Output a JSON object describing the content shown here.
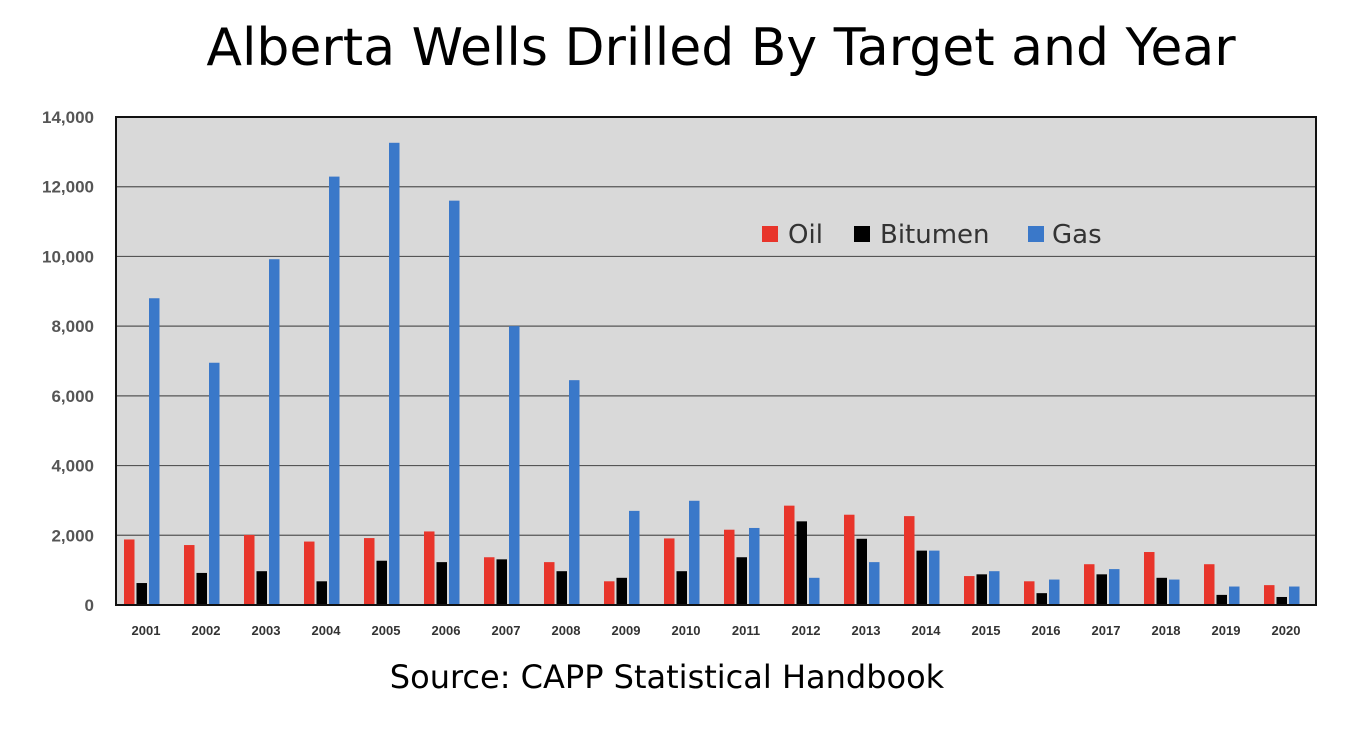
{
  "chart_data": {
    "type": "bar",
    "title": "Alberta Wells Drilled By Target and Year",
    "source": "Source: CAPP Statistical Handbook",
    "categories": [
      "2001",
      "2002",
      "2003",
      "2004",
      "2005",
      "2006",
      "2007",
      "2008",
      "2009",
      "2010",
      "2011",
      "2012",
      "2013",
      "2014",
      "2015",
      "2016",
      "2017",
      "2018",
      "2019",
      "2020"
    ],
    "series": [
      {
        "name": "Oil",
        "color": "#e8352b",
        "values": [
          1880,
          1720,
          2010,
          1820,
          1920,
          2110,
          1370,
          1230,
          680,
          1910,
          2160,
          2850,
          2590,
          2550,
          830,
          680,
          1170,
          1520,
          1170,
          570
        ]
      },
      {
        "name": "Bitumen",
        "color": "#000000",
        "values": [
          630,
          920,
          970,
          680,
          1270,
          1230,
          1310,
          970,
          780,
          970,
          1370,
          2400,
          1900,
          1560,
          880,
          340,
          880,
          780,
          290,
          230
        ]
      },
      {
        "name": "Gas",
        "color": "#3a78c9",
        "values": [
          8800,
          6950,
          9920,
          12290,
          13260,
          11600,
          8000,
          6450,
          2700,
          2990,
          2210,
          780,
          1230,
          1560,
          970,
          730,
          1030,
          730,
          530,
          530
        ]
      }
    ],
    "yticks": [
      "0",
      "2,000",
      "4,000",
      "6,000",
      "8,000",
      "10,000",
      "12,000",
      "14,000"
    ],
    "ylim": [
      0,
      14000
    ],
    "xlabel": "",
    "ylabel": "",
    "grid": true,
    "legend": {
      "position": "top-right",
      "labels": [
        "Oil",
        "Bitumen",
        "Gas"
      ]
    },
    "plot_background": "#d9d9d9"
  }
}
